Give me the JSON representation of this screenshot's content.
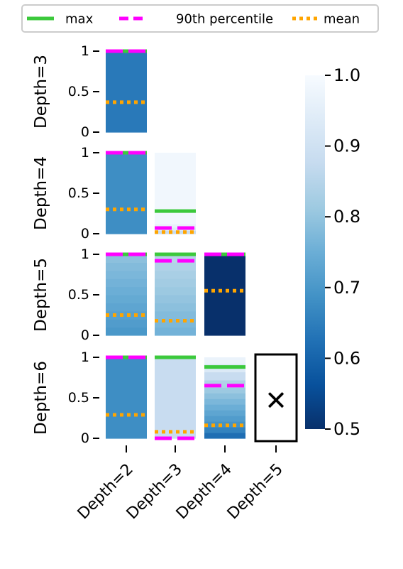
{
  "chart_data": {
    "type": "heatmap",
    "legend": {
      "position": "top",
      "entries": [
        {
          "label": "max",
          "color": "#3cc93c",
          "style": "solid"
        },
        {
          "label": "90th percentile",
          "color": "#ff00ff",
          "style": "dashed"
        },
        {
          "label": "mean",
          "color": "#ffa500",
          "style": "dotted"
        }
      ]
    },
    "row_labels": [
      "Depth=3",
      "Depth=4",
      "Depth=5",
      "Depth=6"
    ],
    "col_labels": [
      "Depth=2",
      "Depth=3",
      "Depth=4",
      "Depth=5"
    ],
    "y_ticks": [
      "0",
      "0.5",
      "1"
    ],
    "ylim": [
      0,
      1
    ],
    "colorbar": {
      "min": 0.5,
      "max": 1.0,
      "ticks": [
        "0.5",
        "0.6",
        "0.7",
        "0.8",
        "0.9",
        "1.0"
      ],
      "colormap": "Blues_r"
    },
    "cells": [
      {
        "row": 0,
        "col": 0,
        "max": 1.0,
        "p90": 1.0,
        "mean": 0.37,
        "bands": [
          {
            "from": 0.0,
            "to": 1.0,
            "value": 0.64
          }
        ]
      },
      {
        "row": 1,
        "col": 0,
        "max": 1.0,
        "p90": 1.0,
        "mean": 0.3,
        "bands": [
          {
            "from": 0.0,
            "to": 1.0,
            "value": 0.68
          }
        ]
      },
      {
        "row": 1,
        "col": 1,
        "max": 0.28,
        "p90": 0.07,
        "mean": 0.02,
        "bands": [
          {
            "from": 0.0,
            "to": 0.04,
            "value": 0.88
          },
          {
            "from": 0.04,
            "to": 0.08,
            "value": 0.93
          },
          {
            "from": 0.08,
            "to": 0.12,
            "value": 0.96
          },
          {
            "from": 0.12,
            "to": 1.0,
            "value": 0.985
          }
        ]
      },
      {
        "row": 2,
        "col": 0,
        "max": 1.0,
        "p90": 1.0,
        "mean": 0.25,
        "bands": [
          {
            "from": 0.0,
            "to": 0.1,
            "value": 0.7
          },
          {
            "from": 0.1,
            "to": 0.2,
            "value": 0.71
          },
          {
            "from": 0.2,
            "to": 0.3,
            "value": 0.72
          },
          {
            "from": 0.3,
            "to": 0.4,
            "value": 0.73
          },
          {
            "from": 0.4,
            "to": 0.5,
            "value": 0.74
          },
          {
            "from": 0.5,
            "to": 0.6,
            "value": 0.75
          },
          {
            "from": 0.6,
            "to": 0.7,
            "value": 0.76
          },
          {
            "from": 0.7,
            "to": 0.8,
            "value": 0.77
          },
          {
            "from": 0.8,
            "to": 0.9,
            "value": 0.78
          },
          {
            "from": 0.9,
            "to": 1.0,
            "value": 0.79
          }
        ]
      },
      {
        "row": 2,
        "col": 1,
        "max": 1.0,
        "p90": 0.92,
        "mean": 0.18,
        "bands": [
          {
            "from": 0.0,
            "to": 0.1,
            "value": 0.76
          },
          {
            "from": 0.1,
            "to": 0.2,
            "value": 0.77
          },
          {
            "from": 0.2,
            "to": 0.3,
            "value": 0.78
          },
          {
            "from": 0.3,
            "to": 0.4,
            "value": 0.79
          },
          {
            "from": 0.4,
            "to": 0.5,
            "value": 0.8
          },
          {
            "from": 0.5,
            "to": 0.6,
            "value": 0.81
          },
          {
            "from": 0.6,
            "to": 0.7,
            "value": 0.82
          },
          {
            "from": 0.7,
            "to": 0.8,
            "value": 0.83
          },
          {
            "from": 0.8,
            "to": 0.9,
            "value": 0.84
          },
          {
            "from": 0.9,
            "to": 1.0,
            "value": 0.85
          }
        ]
      },
      {
        "row": 2,
        "col": 2,
        "max": 1.0,
        "p90": 1.0,
        "mean": 0.55,
        "bands": [
          {
            "from": 0.0,
            "to": 1.0,
            "value": 0.5
          }
        ]
      },
      {
        "row": 3,
        "col": 0,
        "max": 1.0,
        "p90": 1.0,
        "mean": 0.29,
        "bands": [
          {
            "from": 0.0,
            "to": 1.0,
            "value": 0.68
          }
        ]
      },
      {
        "row": 3,
        "col": 1,
        "max": 1.0,
        "p90": 0.0,
        "mean": 0.08,
        "bands": [
          {
            "from": 0.0,
            "to": 1.0,
            "value": 0.88
          }
        ]
      },
      {
        "row": 3,
        "col": 2,
        "max": 0.88,
        "p90": 0.65,
        "mean": 0.16,
        "bands": [
          {
            "from": 0.0,
            "to": 0.07,
            "value": 0.62
          },
          {
            "from": 0.07,
            "to": 0.14,
            "value": 0.66
          },
          {
            "from": 0.14,
            "to": 0.21,
            "value": 0.69
          },
          {
            "from": 0.21,
            "to": 0.28,
            "value": 0.71
          },
          {
            "from": 0.28,
            "to": 0.35,
            "value": 0.73
          },
          {
            "from": 0.35,
            "to": 0.42,
            "value": 0.75
          },
          {
            "from": 0.42,
            "to": 0.49,
            "value": 0.77
          },
          {
            "from": 0.49,
            "to": 0.56,
            "value": 0.79
          },
          {
            "from": 0.56,
            "to": 0.63,
            "value": 0.81
          },
          {
            "from": 0.63,
            "to": 0.72,
            "value": 0.84
          },
          {
            "from": 0.72,
            "to": 0.82,
            "value": 0.88
          },
          {
            "from": 0.82,
            "to": 0.92,
            "value": 0.93
          },
          {
            "from": 0.92,
            "to": 1.0,
            "value": 0.97
          }
        ]
      },
      {
        "row": 3,
        "col": 3,
        "missing": true,
        "marker": "✕",
        "marker_color": "#ff0000"
      }
    ]
  }
}
